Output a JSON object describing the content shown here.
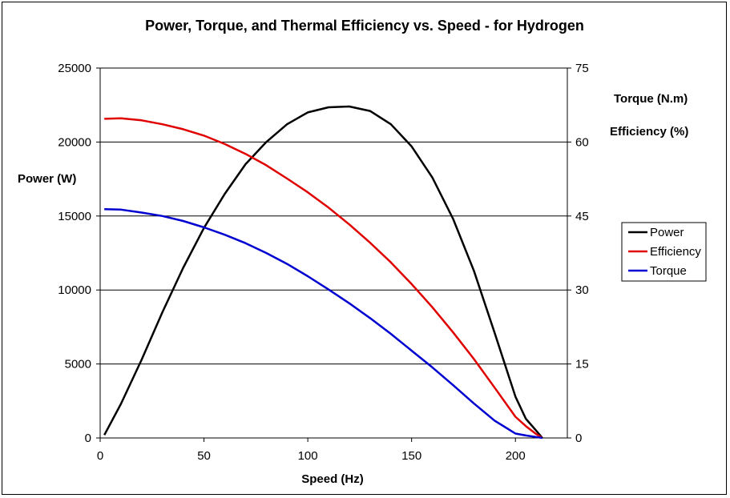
{
  "chart_data": {
    "type": "line",
    "title": "Power, Torque, and Thermal Efficiency vs. Speed - for Hydrogen",
    "xlabel": "Speed (Hz)",
    "ylabel_left": "Power (W)",
    "ylabel_right": [
      "Torque (N.m)",
      "Efficiency (%)"
    ],
    "xlim": [
      0,
      225
    ],
    "ylim_left": [
      0,
      25000
    ],
    "ylim_right": [
      0,
      75
    ],
    "x_ticks": [
      "0",
      "50",
      "100",
      "150",
      "200"
    ],
    "y_left_ticks": [
      "0",
      "5000",
      "10000",
      "15000",
      "20000",
      "25000"
    ],
    "y_right_ticks": [
      "0",
      "15",
      "30",
      "45",
      "60",
      "75"
    ],
    "grid": "horizontal",
    "legend_position": "right",
    "x": [
      2,
      10,
      20,
      30,
      40,
      50,
      60,
      70,
      80,
      90,
      100,
      110,
      120,
      130,
      140,
      150,
      160,
      170,
      180,
      190,
      200,
      205,
      210,
      213
    ],
    "series": [
      {
        "name": "Power",
        "axis": "left",
        "color": "#000000",
        "values": [
          200,
          2300,
          5300,
          8500,
          11500,
          14200,
          16500,
          18500,
          20000,
          21200,
          22000,
          22350,
          22400,
          22100,
          21200,
          19700,
          17600,
          14800,
          11300,
          7100,
          2800,
          1300,
          500,
          0
        ]
      },
      {
        "name": "Efficiency",
        "axis": "right",
        "color": "#e00000",
        "values": [
          64.7,
          64.8,
          64.4,
          63.6,
          62.6,
          61.3,
          59.6,
          57.6,
          55.3,
          52.6,
          49.8,
          46.7,
          43.3,
          39.6,
          35.6,
          31.2,
          26.5,
          21.4,
          16.0,
          10.2,
          4.3,
          2.4,
          0.8,
          0
        ]
      },
      {
        "name": "Torque",
        "axis": "right",
        "color": "#0000d0",
        "values": [
          46.4,
          46.3,
          45.7,
          45.0,
          44.0,
          42.7,
          41.2,
          39.5,
          37.5,
          35.3,
          32.8,
          30.1,
          27.3,
          24.3,
          21.1,
          17.7,
          14.3,
          10.7,
          7.0,
          3.5,
          0.9,
          0.5,
          0.2,
          0
        ]
      }
    ]
  }
}
